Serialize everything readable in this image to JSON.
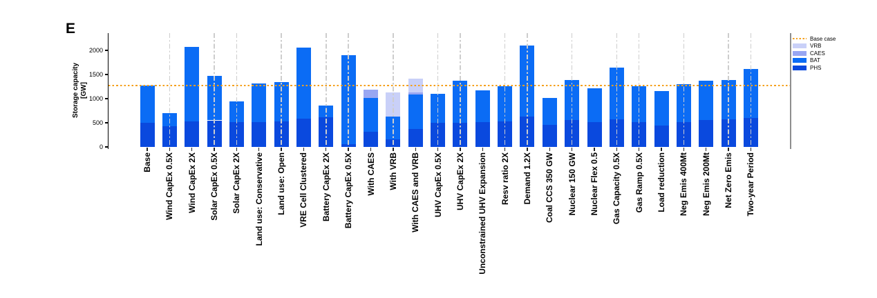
{
  "panel_label": "E",
  "chart_data": {
    "type": "bar",
    "stacked": true,
    "ylabel_lines": [
      "Storage capacity",
      "[GW]"
    ],
    "yticks": [
      0,
      500,
      1000,
      1500,
      2000
    ],
    "ylim": [
      0,
      2360
    ],
    "grid": "vertical-dash-dot-guides-on-selected-categories",
    "legend_position": "top-right-outside",
    "baseline": {
      "label": "Base case",
      "value": 1270,
      "color": "#F5A01B",
      "style": "dotted"
    },
    "series_order_bottom_to_top": [
      "PHS",
      "BAT",
      "CAES",
      "VRB"
    ],
    "series_colors": {
      "PHS": "#0A49DE",
      "BAT": "#0B6CF5",
      "CAES": "#98A6F2",
      "VRB": "#C9D0F8"
    },
    "legend_entries": [
      "Base case",
      "VRB",
      "CAES",
      "BAT",
      "PHS"
    ],
    "categories": [
      {
        "label": "Base",
        "PHS": 500,
        "BAT": 770,
        "CAES": 0,
        "VRB": 0,
        "guide": false
      },
      {
        "label": "Wind CapEx 0.5X",
        "PHS": 430,
        "BAT": 270,
        "CAES": 0,
        "VRB": 0,
        "guide": true
      },
      {
        "label": "Wind CapEx 2X",
        "PHS": 525,
        "BAT": 1545,
        "CAES": 0,
        "VRB": 0,
        "guide": false
      },
      {
        "label": "Solar CapEx 0.5X",
        "PHS": 550,
        "BAT": 920,
        "CAES": 0,
        "VRB": 0,
        "guide": true
      },
      {
        "label": "Solar CapEx 2X",
        "PHS": 520,
        "BAT": 420,
        "CAES": 0,
        "VRB": 0,
        "guide": true
      },
      {
        "label": "Land use: Conservative",
        "PHS": 510,
        "BAT": 800,
        "CAES": 0,
        "VRB": 0,
        "guide": false
      },
      {
        "label": "Land use: Open",
        "PHS": 535,
        "BAT": 815,
        "CAES": 0,
        "VRB": 0,
        "guide": true
      },
      {
        "label": "VRE Cell Clustered",
        "PHS": 590,
        "BAT": 1470,
        "CAES": 0,
        "VRB": 0,
        "guide": false
      },
      {
        "label": "Battery CapEx 2X",
        "PHS": 620,
        "BAT": 240,
        "CAES": 0,
        "VRB": 0,
        "guide": true
      },
      {
        "label": "Battery CapEx 0.5X",
        "PHS": 60,
        "BAT": 1835,
        "CAES": 0,
        "VRB": 0,
        "guide": true
      },
      {
        "label": "With CAES",
        "PHS": 310,
        "BAT": 710,
        "CAES": 170,
        "VRB": 0,
        "guide": false
      },
      {
        "label": "With VRB",
        "PHS": 155,
        "BAT": 480,
        "CAES": 0,
        "VRB": 495,
        "guide": true
      },
      {
        "label": "With CAES and VRB",
        "PHS": 365,
        "BAT": 715,
        "CAES": 50,
        "VRB": 285,
        "guide": false
      },
      {
        "label": "UHV CapEx 0.5X",
        "PHS": 500,
        "BAT": 605,
        "CAES": 0,
        "VRB": 0,
        "guide": true
      },
      {
        "label": "UHV CapEx 2X",
        "PHS": 505,
        "BAT": 860,
        "CAES": 0,
        "VRB": 0,
        "guide": true
      },
      {
        "label": "Unconstrained UHV Expansion",
        "PHS": 520,
        "BAT": 655,
        "CAES": 0,
        "VRB": 0,
        "guide": false
      },
      {
        "label": "Resv ratio 2X",
        "PHS": 530,
        "BAT": 730,
        "CAES": 0,
        "VRB": 0,
        "guide": true
      },
      {
        "label": "Demand 1.2X",
        "PHS": 630,
        "BAT": 1465,
        "CAES": 0,
        "VRB": 0,
        "guide": true
      },
      {
        "label": "Coal CCS 350 GW",
        "PHS": 455,
        "BAT": 560,
        "CAES": 0,
        "VRB": 0,
        "guide": false
      },
      {
        "label": "Nuclear 150 GW",
        "PHS": 560,
        "BAT": 830,
        "CAES": 0,
        "VRB": 0,
        "guide": true
      },
      {
        "label": "Nuclear Flex 0.5",
        "PHS": 520,
        "BAT": 690,
        "CAES": 0,
        "VRB": 0,
        "guide": false
      },
      {
        "label": "Gas Capacity 0.5X",
        "PHS": 570,
        "BAT": 1080,
        "CAES": 0,
        "VRB": 0,
        "guide": true
      },
      {
        "label": "Gas Ramp 0.5X",
        "PHS": 510,
        "BAT": 750,
        "CAES": 0,
        "VRB": 0,
        "guide": true
      },
      {
        "label": "Load reduction",
        "PHS": 440,
        "BAT": 720,
        "CAES": 0,
        "VRB": 0,
        "guide": false
      },
      {
        "label": "Neg Emis 400Mt",
        "PHS": 520,
        "BAT": 780,
        "CAES": 0,
        "VRB": 0,
        "guide": true
      },
      {
        "label": "Neg Emis 200Mt",
        "PHS": 560,
        "BAT": 810,
        "CAES": 0,
        "VRB": 0,
        "guide": false
      },
      {
        "label": "Net Zero Emis",
        "PHS": 570,
        "BAT": 820,
        "CAES": 0,
        "VRB": 0,
        "guide": true
      },
      {
        "label": "Two-year Period",
        "PHS": 595,
        "BAT": 1025,
        "CAES": 0,
        "VRB": 0,
        "guide": true
      }
    ]
  }
}
